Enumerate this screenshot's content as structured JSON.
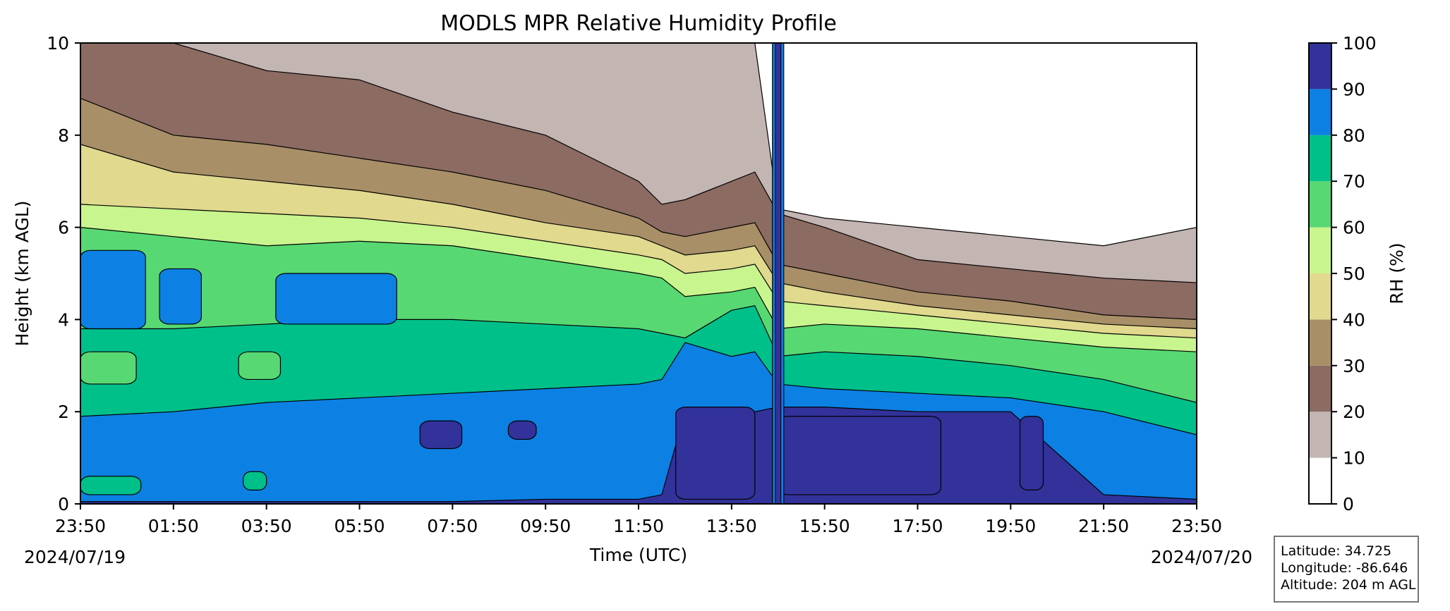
{
  "chart_data": {
    "type": "heatmap",
    "subtype": "filled-contour",
    "title": "MODLS MPR Relative Humidity Profile",
    "xlabel": "Time (UTC)",
    "ylabel": "Height (km AGL)",
    "x_ticks": [
      "23:50",
      "01:50",
      "03:50",
      "05:50",
      "07:50",
      "09:50",
      "11:50",
      "13:50",
      "15:50",
      "17:50",
      "19:50",
      "21:50",
      "23:50"
    ],
    "x_start_date": "2024/07/19",
    "x_end_date": "2024/07/20",
    "x_range_hours": [
      0,
      24
    ],
    "ylim": [
      0,
      10
    ],
    "y_ticks": [
      0,
      2,
      4,
      6,
      8,
      10
    ],
    "colorbar": {
      "label": "RH (%)",
      "levels": [
        0,
        10,
        20,
        30,
        40,
        50,
        60,
        70,
        80,
        90,
        100
      ],
      "colors": [
        "#ffffff",
        "#c3b5b2",
        "#8b6b62",
        "#a88f67",
        "#e0d98e",
        "#c8f58e",
        "#58d873",
        "#00c08a",
        "#0d80e3",
        "#32329a"
      ]
    },
    "contour_boundaries_km": {
      "hours": [
        0,
        2,
        4,
        6,
        8,
        10,
        12,
        12.5,
        13,
        14,
        14.5,
        15,
        16,
        18,
        20,
        22,
        24
      ],
      "rh_90": [
        0.05,
        0.05,
        0.05,
        0.05,
        0.05,
        0.1,
        0.1,
        0.2,
        2.0,
        2.0,
        2.0,
        2.1,
        2.1,
        2.0,
        2.0,
        0.2,
        0.1
      ],
      "rh_80": [
        1.9,
        2.0,
        2.2,
        2.3,
        2.4,
        2.5,
        2.6,
        2.7,
        3.5,
        3.2,
        3.3,
        2.6,
        2.5,
        2.4,
        2.3,
        2.0,
        1.5
      ],
      "rh_70": [
        3.8,
        3.8,
        3.9,
        4.0,
        4.0,
        3.9,
        3.8,
        3.7,
        3.6,
        4.2,
        4.3,
        3.2,
        3.3,
        3.2,
        3.0,
        2.7,
        2.2
      ],
      "rh_60": [
        6.0,
        5.8,
        5.6,
        5.7,
        5.6,
        5.3,
        5.0,
        4.9,
        4.5,
        4.6,
        4.7,
        3.8,
        3.9,
        3.8,
        3.6,
        3.4,
        3.3
      ],
      "rh_50": [
        6.5,
        6.4,
        6.3,
        6.2,
        6.0,
        5.7,
        5.4,
        5.3,
        5.0,
        5.1,
        5.2,
        4.4,
        4.3,
        4.1,
        3.9,
        3.7,
        3.6
      ],
      "rh_40": [
        7.8,
        7.2,
        7.0,
        6.8,
        6.5,
        6.1,
        5.8,
        5.6,
        5.4,
        5.5,
        5.6,
        4.8,
        4.6,
        4.3,
        4.1,
        3.9,
        3.8
      ],
      "rh_30": [
        8.8,
        8.0,
        7.8,
        7.5,
        7.2,
        6.8,
        6.2,
        5.9,
        5.8,
        6.0,
        6.1,
        5.2,
        5.0,
        4.6,
        4.4,
        4.1,
        4.0
      ],
      "rh_20": [
        10.0,
        10.0,
        9.4,
        9.2,
        8.5,
        8.0,
        7.0,
        6.5,
        6.6,
        7.0,
        7.2,
        6.3,
        6.0,
        5.3,
        5.1,
        4.9,
        4.8
      ],
      "rh_10": [
        10.0,
        10.0,
        10.0,
        10.0,
        10.0,
        10.0,
        10.0,
        10.0,
        10.0,
        10.0,
        10.0,
        6.4,
        6.2,
        6.0,
        5.8,
        5.6,
        6.0
      ]
    },
    "moist_patches": [
      {
        "level": 80,
        "hours": [
          0,
          1.4
        ],
        "km": [
          3.8,
          5.5
        ]
      },
      {
        "level": 80,
        "hours": [
          1.7,
          2.6
        ],
        "km": [
          3.9,
          5.1
        ]
      },
      {
        "level": 80,
        "hours": [
          4.2,
          6.8
        ],
        "km": [
          3.9,
          5.0
        ]
      },
      {
        "level": 60,
        "hours": [
          0,
          1.2
        ],
        "km": [
          2.6,
          3.3
        ]
      },
      {
        "level": 60,
        "hours": [
          3.4,
          4.3
        ],
        "km": [
          2.7,
          3.3
        ]
      },
      {
        "level": 70,
        "hours": [
          3.5,
          4.0
        ],
        "km": [
          0.3,
          0.7
        ]
      },
      {
        "level": 70,
        "hours": [
          0,
          1.3
        ],
        "km": [
          0.2,
          0.6
        ]
      },
      {
        "level": 90,
        "hours": [
          7.3,
          8.2
        ],
        "km": [
          1.2,
          1.8
        ]
      },
      {
        "level": 90,
        "hours": [
          9.2,
          9.8
        ],
        "km": [
          1.4,
          1.8
        ]
      },
      {
        "level": 90,
        "hours": [
          12.8,
          14.5
        ],
        "km": [
          0.1,
          2.1
        ]
      },
      {
        "level": 90,
        "hours": [
          15.0,
          18.5
        ],
        "km": [
          0.2,
          1.9
        ]
      },
      {
        "level": 90,
        "hours": [
          20.2,
          20.7
        ],
        "km": [
          0.3,
          1.9
        ]
      }
    ],
    "vertical_feature_hours": 15.0
  },
  "info_box": {
    "latitude": "Latitude: 34.725",
    "longitude": "Longitude: -86.646",
    "altitude": "Altitude: 204 m AGL"
  }
}
